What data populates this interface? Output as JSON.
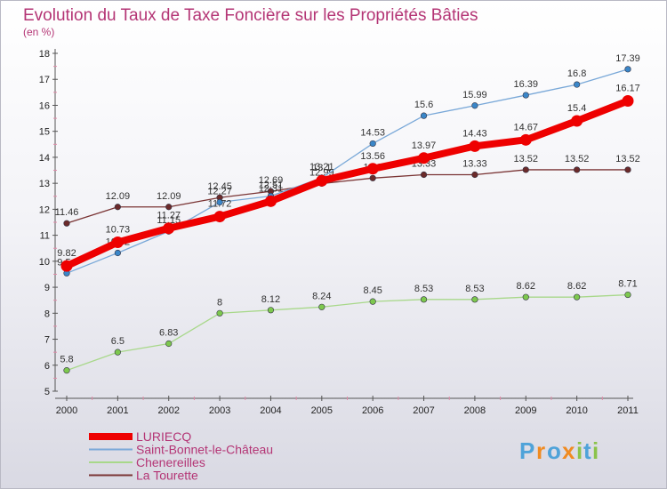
{
  "chart_data": {
    "type": "line",
    "title": "Evolution du Taux de Taxe Foncière sur les Propriétés Bâties",
    "subtitle": "(en %)",
    "xlabel": "",
    "ylabel": "",
    "ylim": [
      5,
      18
    ],
    "yticks": [
      "5",
      "6",
      "7",
      "8",
      "9",
      "10",
      "11",
      "12",
      "13",
      "14",
      "15",
      "16",
      "17",
      "18"
    ],
    "x": [
      "2000",
      "2001",
      "2002",
      "2003",
      "2004",
      "2005",
      "2006",
      "2007",
      "2008",
      "2009",
      "2010",
      "2011"
    ],
    "legend_position": "bottom-left",
    "series": [
      {
        "name": "Saint-Bonnet-le-Château",
        "color": "#79a8d8",
        "marker": "#3a86c8",
        "values": [
          9.54,
          10.32,
          11.15,
          12.27,
          12.51,
          13.21,
          14.53,
          15.6,
          15.99,
          16.39,
          16.8,
          17.39
        ],
        "labels": [
          "9.54",
          "10.32",
          "11.15",
          "12.27",
          "12.51",
          "13.21",
          "14.53",
          "15.6",
          "15.99",
          "16.39",
          "16.8",
          "17.39"
        ]
      },
      {
        "name": "Chenereilles",
        "color": "#a8d88a",
        "marker": "#7dc84e",
        "values": [
          5.8,
          6.5,
          6.83,
          8,
          8.12,
          8.24,
          8.45,
          8.53,
          8.53,
          8.62,
          8.62,
          8.71
        ],
        "labels": [
          "5.8",
          "6.5",
          "6.83",
          "8",
          "8.12",
          "8.24",
          "8.45",
          "8.53",
          "8.53",
          "8.62",
          "8.62",
          "8.71"
        ]
      },
      {
        "name": "La Tourette",
        "color": "#7a3434",
        "marker": "#6b2a2a",
        "values": [
          11.46,
          12.09,
          12.09,
          12.45,
          12.69,
          12.99,
          13.2,
          13.33,
          13.33,
          13.52,
          13.52,
          13.52
        ],
        "labels": [
          "11.46",
          "12.09",
          "12.09",
          "12.45",
          "12.69",
          "12.99",
          "13.2",
          "13.33",
          "13.33",
          "13.52",
          "13.52",
          "13.52"
        ]
      },
      {
        "name": "LURIECQ",
        "color": "#ee0000",
        "marker": "#ee0000",
        "values": [
          9.82,
          10.73,
          11.27,
          11.72,
          12.31,
          13.1,
          13.56,
          13.97,
          14.43,
          14.67,
          15.4,
          16.17
        ],
        "labels": [
          "9.82",
          "10.73",
          "11.27",
          "11.72",
          "12.31",
          "13.1",
          "13.56",
          "13.97",
          "14.43",
          "14.67",
          "15.4",
          "16.17"
        ]
      }
    ],
    "legend_order": [
      "LURIECQ",
      "Saint-Bonnet-le-Château",
      "Chenereilles",
      "La Tourette"
    ]
  },
  "logo": {
    "letters": [
      "P",
      "r",
      "o",
      "x",
      "i",
      "t",
      "i"
    ],
    "colors": [
      "#4fa3d9",
      "#f08b21",
      "#4fa3d9",
      "#f08b21",
      "#8bc34a",
      "#4fa3d9",
      "#8bc34a"
    ]
  }
}
